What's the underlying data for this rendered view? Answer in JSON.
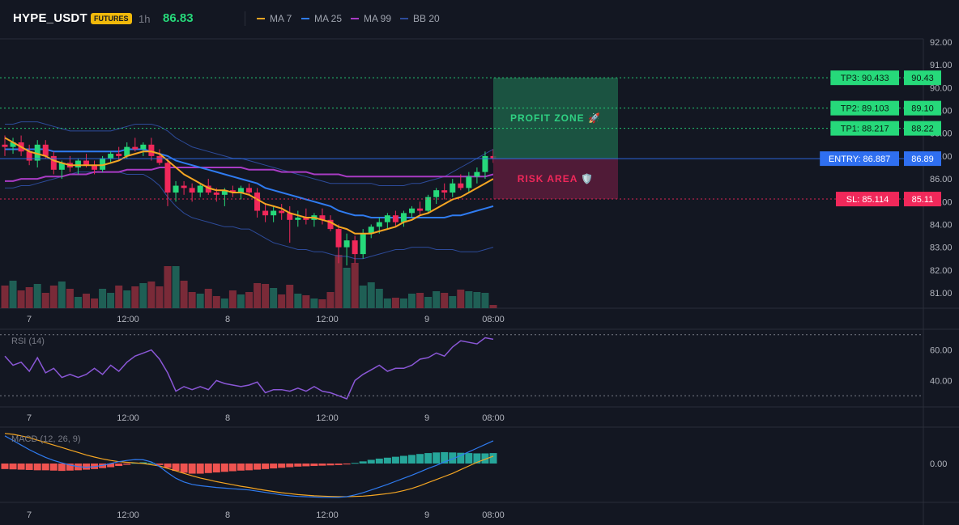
{
  "header": {
    "symbol": "HYPE_USDT",
    "market_badge": "FUTURES",
    "interval": "1h",
    "last_price": "86.83",
    "legend": [
      {
        "label": "MA 7",
        "color": "#f5a623"
      },
      {
        "label": "MA 25",
        "color": "#2f7bf0"
      },
      {
        "label": "MA 99",
        "color": "#a93bc4"
      },
      {
        "label": "BB 20",
        "color": "#2d4b9a"
      }
    ]
  },
  "colors": {
    "background": "#131722",
    "up": "#26d97a",
    "down": "#f0285a",
    "entry": "#2f6ff0",
    "tp": "#26d97a",
    "sl": "#f0285a"
  },
  "price_axis": {
    "ticks": [
      "92.00",
      "91.00",
      "90.00",
      "89.00",
      "88.00",
      "87.00",
      "86.00",
      "85.00",
      "84.00",
      "83.00",
      "82.00",
      "81.00"
    ]
  },
  "time_axis": {
    "labels": [
      "7",
      "12:00",
      "8",
      "12:00",
      "9",
      "08:00"
    ]
  },
  "trade_levels": [
    {
      "name": "tp3",
      "label": "TP3: 90.433",
      "axis_label": "90.43",
      "value": 90.433
    },
    {
      "name": "tp2",
      "label": "TP2: 89.103",
      "axis_label": "89.10",
      "value": 89.103
    },
    {
      "name": "tp1",
      "label": "TP1: 88.217",
      "axis_label": "88.22",
      "value": 88.217
    },
    {
      "name": "entry",
      "label": "ENTRY: 86.887",
      "axis_label": "86.89",
      "value": 86.887
    },
    {
      "name": "sl",
      "label": "SL: 85.114",
      "axis_label": "85.11",
      "value": 85.114
    }
  ],
  "zones": {
    "profit_label": "PROFIT ZONE 🚀",
    "risk_label": "RISK AREA 🛡️"
  },
  "rsi": {
    "title": "RSI (14)",
    "ticks": [
      "60.00",
      "40.00"
    ],
    "upper": 70,
    "lower": 30
  },
  "macd": {
    "title": "MACD (12, 26, 9)",
    "ticks": [
      "0.00"
    ]
  },
  "chart_data": {
    "type": "candlestick",
    "candles": [
      [
        87.5,
        87.9,
        87.0,
        87.4
      ],
      [
        87.4,
        87.8,
        87.1,
        87.6
      ],
      [
        87.6,
        87.9,
        87.0,
        87.2
      ],
      [
        87.2,
        87.5,
        86.6,
        86.8
      ],
      [
        86.8,
        87.7,
        86.5,
        87.5
      ],
      [
        87.5,
        87.7,
        86.9,
        87.0
      ],
      [
        87.0,
        87.2,
        86.2,
        86.4
      ],
      [
        86.4,
        86.8,
        86.0,
        86.7
      ],
      [
        86.7,
        87.0,
        86.3,
        86.5
      ],
      [
        86.5,
        86.9,
        86.2,
        86.8
      ],
      [
        86.8,
        87.1,
        86.5,
        86.6
      ],
      [
        86.6,
        86.8,
        86.2,
        86.4
      ],
      [
        86.4,
        87.0,
        86.3,
        86.9
      ],
      [
        86.9,
        87.2,
        86.7,
        87.1
      ],
      [
        87.1,
        87.4,
        86.8,
        87.0
      ],
      [
        87.0,
        87.6,
        86.9,
        87.4
      ],
      [
        87.4,
        87.8,
        87.2,
        87.3
      ],
      [
        87.3,
        87.6,
        87.0,
        87.5
      ],
      [
        87.5,
        87.8,
        86.8,
        87.0
      ],
      [
        87.0,
        87.3,
        86.6,
        86.7
      ],
      [
        86.7,
        86.9,
        84.8,
        85.4
      ],
      [
        85.4,
        85.9,
        85.0,
        85.7
      ],
      [
        85.7,
        85.9,
        85.3,
        85.6
      ],
      [
        85.6,
        85.8,
        85.0,
        85.4
      ],
      [
        85.4,
        85.8,
        85.2,
        85.7
      ],
      [
        85.7,
        86.0,
        85.3,
        85.4
      ],
      [
        85.4,
        85.6,
        85.0,
        85.3
      ],
      [
        85.3,
        85.6,
        84.8,
        85.5
      ],
      [
        85.5,
        85.7,
        85.2,
        85.4
      ],
      [
        85.4,
        85.7,
        85.1,
        85.6
      ],
      [
        85.6,
        85.8,
        85.3,
        85.4
      ],
      [
        85.4,
        85.6,
        84.3,
        84.6
      ],
      [
        84.6,
        84.9,
        84.1,
        84.4
      ],
      [
        84.4,
        84.8,
        84.1,
        84.6
      ],
      [
        84.6,
        84.9,
        84.2,
        84.5
      ],
      [
        84.5,
        84.8,
        83.2,
        84.2
      ],
      [
        84.2,
        84.6,
        83.9,
        84.3
      ],
      [
        84.3,
        84.7,
        84.0,
        84.2
      ],
      [
        84.2,
        84.5,
        83.9,
        84.4
      ],
      [
        84.4,
        84.7,
        84.0,
        84.2
      ],
      [
        84.2,
        84.4,
        83.7,
        83.8
      ],
      [
        83.8,
        84.0,
        82.3,
        83.0
      ],
      [
        83.0,
        83.6,
        82.2,
        83.3
      ],
      [
        83.3,
        83.5,
        82.3,
        82.7
      ],
      [
        82.7,
        83.8,
        82.5,
        83.6
      ],
      [
        83.6,
        84.0,
        83.4,
        83.9
      ],
      [
        83.9,
        84.3,
        83.6,
        84.1
      ],
      [
        84.1,
        84.5,
        83.8,
        84.4
      ],
      [
        84.4,
        84.6,
        83.9,
        84.1
      ],
      [
        84.1,
        84.6,
        83.9,
        84.5
      ],
      [
        84.5,
        84.8,
        84.3,
        84.7
      ],
      [
        84.7,
        85.0,
        84.4,
        84.6
      ],
      [
        84.6,
        85.3,
        84.5,
        85.2
      ],
      [
        85.2,
        85.6,
        84.9,
        85.5
      ],
      [
        85.5,
        85.8,
        85.1,
        85.4
      ],
      [
        85.4,
        86.0,
        85.2,
        85.8
      ],
      [
        85.8,
        86.2,
        85.5,
        85.6
      ],
      [
        85.6,
        86.3,
        85.4,
        86.1
      ],
      [
        86.1,
        86.5,
        85.8,
        86.3
      ],
      [
        86.3,
        87.2,
        86.0,
        87.0
      ],
      [
        87.0,
        87.3,
        86.7,
        86.9
      ]
    ],
    "volume": [
      28,
      34,
      22,
      26,
      30,
      19,
      28,
      33,
      24,
      14,
      18,
      12,
      24,
      19,
      28,
      22,
      27,
      31,
      33,
      27,
      52,
      52,
      34,
      20,
      18,
      24,
      15,
      12,
      22,
      17,
      20,
      31,
      30,
      25,
      17,
      29,
      18,
      16,
      12,
      11,
      20,
      66,
      50,
      56,
      28,
      32,
      24,
      12,
      13,
      12,
      18,
      19,
      14,
      21,
      19,
      15,
      23,
      21,
      20,
      19,
      4
    ],
    "ma7": [
      87.8,
      87.6,
      87.4,
      87.2,
      87.1,
      87.0,
      86.8,
      86.7,
      86.6,
      86.6,
      86.6,
      86.6,
      86.6,
      86.7,
      86.8,
      87.0,
      87.1,
      87.2,
      87.2,
      87.1,
      86.8,
      86.5,
      86.2,
      86.0,
      85.8,
      85.6,
      85.5,
      85.5,
      85.4,
      85.4,
      85.3,
      85.1,
      84.9,
      84.8,
      84.7,
      84.5,
      84.4,
      84.3,
      84.3,
      84.2,
      84.1,
      83.9,
      83.8,
      83.6,
      83.6,
      83.6,
      83.7,
      83.8,
      83.9,
      84.1,
      84.2,
      84.4,
      84.5,
      84.7,
      84.9,
      85.1,
      85.2,
      85.4,
      85.6,
      85.8,
      86.0
    ],
    "ma25": [
      87.3,
      87.3,
      87.3,
      87.3,
      87.3,
      87.3,
      87.2,
      87.2,
      87.2,
      87.2,
      87.2,
      87.2,
      87.2,
      87.2,
      87.2,
      87.3,
      87.3,
      87.3,
      87.2,
      87.1,
      87.0,
      86.8,
      86.7,
      86.6,
      86.5,
      86.4,
      86.3,
      86.2,
      86.1,
      86.0,
      85.9,
      85.8,
      85.6,
      85.5,
      85.4,
      85.3,
      85.2,
      85.1,
      85.0,
      84.9,
      84.8,
      84.6,
      84.5,
      84.4,
      84.4,
      84.3,
      84.3,
      84.3,
      84.3,
      84.3,
      84.3,
      84.3,
      84.3,
      84.3,
      84.3,
      84.4,
      84.4,
      84.5,
      84.6,
      84.7,
      84.8
    ],
    "ma99": [
      85.9,
      85.9,
      86.0,
      86.0,
      86.0,
      86.1,
      86.1,
      86.1,
      86.2,
      86.2,
      86.2,
      86.3,
      86.3,
      86.3,
      86.3,
      86.4,
      86.4,
      86.4,
      86.4,
      86.5,
      86.5,
      86.5,
      86.5,
      86.5,
      86.5,
      86.5,
      86.5,
      86.5,
      86.5,
      86.5,
      86.4,
      86.4,
      86.4,
      86.4,
      86.3,
      86.3,
      86.3,
      86.3,
      86.2,
      86.2,
      86.2,
      86.2,
      86.1,
      86.1,
      86.1,
      86.1,
      86.1,
      86.1,
      86.1,
      86.1,
      86.1,
      86.1,
      86.1,
      86.1,
      86.1,
      86.1,
      86.1,
      86.1,
      86.1,
      86.1,
      86.2
    ],
    "bb_upper": [
      88.4,
      88.4,
      88.5,
      88.5,
      88.5,
      88.4,
      88.3,
      88.2,
      88.1,
      88.1,
      88.1,
      88.1,
      88.1,
      88.1,
      88.2,
      88.3,
      88.4,
      88.4,
      88.4,
      88.3,
      88.1,
      87.8,
      87.6,
      87.4,
      87.3,
      87.2,
      87.1,
      87.0,
      86.9,
      86.9,
      86.8,
      86.7,
      86.6,
      86.5,
      86.4,
      86.3,
      86.2,
      86.1,
      86.0,
      85.9,
      85.8,
      85.8,
      85.8,
      85.8,
      85.8,
      85.8,
      85.7,
      85.7,
      85.7,
      85.7,
      85.8,
      85.8,
      85.9,
      86.0,
      86.1,
      86.3,
      86.5,
      86.7,
      86.9,
      87.1,
      87.3
    ],
    "bb_lower": [
      85.6,
      85.6,
      85.7,
      85.7,
      85.8,
      85.9,
      86.0,
      86.1,
      86.2,
      86.3,
      86.3,
      86.3,
      86.3,
      86.3,
      86.3,
      86.2,
      86.2,
      86.2,
      86.0,
      85.7,
      85.2,
      84.8,
      84.5,
      84.3,
      84.2,
      84.1,
      84.0,
      83.9,
      83.9,
      83.8,
      83.8,
      83.6,
      83.4,
      83.2,
      83.1,
      83.0,
      82.9,
      82.9,
      82.8,
      82.8,
      82.7,
      82.6,
      82.6,
      82.5,
      82.5,
      82.6,
      82.7,
      82.8,
      82.9,
      82.9,
      83.0,
      83.0,
      83.0,
      82.9,
      82.9,
      82.9,
      82.8,
      82.8,
      82.8,
      82.9,
      83.0
    ],
    "rsi": [
      56,
      50,
      52,
      46,
      55,
      45,
      48,
      42,
      44,
      42,
      44,
      48,
      44,
      50,
      46,
      52,
      56,
      58,
      60,
      54,
      45,
      33,
      36,
      34,
      36,
      34,
      40,
      38,
      37,
      36,
      37,
      39,
      32,
      34,
      34,
      33,
      35,
      33,
      36,
      33,
      32,
      30,
      28,
      40,
      44,
      47,
      50,
      46,
      48,
      48,
      50,
      54,
      55,
      58,
      56,
      62,
      66,
      65,
      64,
      68,
      67
    ],
    "macd_hist": [
      -0.18,
      -0.19,
      -0.2,
      -0.21,
      -0.22,
      -0.22,
      -0.23,
      -0.24,
      -0.23,
      -0.22,
      -0.2,
      -0.18,
      -0.15,
      -0.12,
      -0.08,
      -0.04,
      0.02,
      0.04,
      0.02,
      -0.05,
      -0.14,
      -0.24,
      -0.3,
      -0.33,
      -0.33,
      -0.31,
      -0.29,
      -0.27,
      -0.25,
      -0.23,
      -0.22,
      -0.2,
      -0.18,
      -0.16,
      -0.14,
      -0.12,
      -0.1,
      -0.09,
      -0.08,
      -0.07,
      -0.06,
      -0.05,
      -0.03,
      0.02,
      0.07,
      0.12,
      0.16,
      0.19,
      0.22,
      0.25,
      0.28,
      0.31,
      0.34,
      0.36,
      0.37,
      0.36,
      0.35,
      0.34,
      0.33,
      0.33,
      0.34
    ],
    "macd_line": [
      0.9,
      0.75,
      0.6,
      0.45,
      0.32,
      0.2,
      0.1,
      0.02,
      -0.05,
      -0.1,
      -0.12,
      -0.1,
      -0.06,
      0.0,
      0.06,
      0.1,
      0.13,
      0.12,
      0.05,
      -0.1,
      -0.3,
      -0.48,
      -0.6,
      -0.68,
      -0.72,
      -0.75,
      -0.78,
      -0.8,
      -0.82,
      -0.84,
      -0.86,
      -0.9,
      -0.94,
      -0.98,
      -1.02,
      -1.05,
      -1.07,
      -1.08,
      -1.09,
      -1.1,
      -1.1,
      -1.1,
      -1.08,
      -1.02,
      -0.95,
      -0.86,
      -0.77,
      -0.68,
      -0.58,
      -0.48,
      -0.38,
      -0.27,
      -0.16,
      -0.06,
      0.05,
      0.15,
      0.26,
      0.38,
      0.5,
      0.62,
      0.74
    ],
    "macd_signal": [
      0.98,
      0.95,
      0.9,
      0.84,
      0.76,
      0.68,
      0.6,
      0.52,
      0.44,
      0.36,
      0.28,
      0.21,
      0.15,
      0.1,
      0.06,
      0.04,
      0.02,
      0.0,
      -0.04,
      -0.08,
      -0.16,
      -0.24,
      -0.32,
      -0.4,
      -0.47,
      -0.53,
      -0.59,
      -0.64,
      -0.69,
      -0.74,
      -0.78,
      -0.83,
      -0.87,
      -0.91,
      -0.95,
      -0.98,
      -1.01,
      -1.03,
      -1.05,
      -1.06,
      -1.07,
      -1.08,
      -1.08,
      -1.07,
      -1.06,
      -1.04,
      -1.01,
      -0.98,
      -0.94,
      -0.88,
      -0.81,
      -0.72,
      -0.62,
      -0.52,
      -0.42,
      -0.32,
      -0.2,
      -0.08,
      0.04,
      0.14,
      0.24
    ]
  }
}
